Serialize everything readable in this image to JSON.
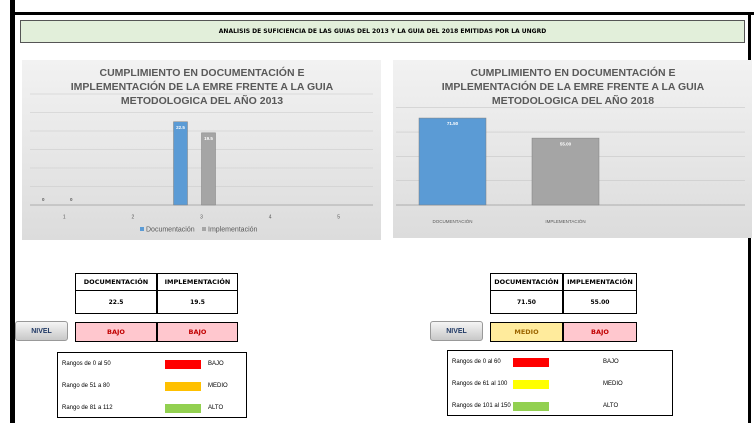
{
  "header": {
    "title": "ANALISIS DE SUFICIENCIA DE LAS GUIAS DEL 2013 Y LA GUIA  DEL 2018 EMITIDAS POR LA UNGRD"
  },
  "chart_data": [
    {
      "type": "bar",
      "title": "CUMPLIMIENTO EN DOCUMENTACIÓN E IMPLEMENTACIÓN DE LA EMRE FRENTE A LA GUIA METODOLOGICA DEL AÑO 2013",
      "categories": [
        "1",
        "2",
        "3",
        "4",
        "5"
      ],
      "series": [
        {
          "name": "Documentación",
          "color": "#5b9bd5",
          "values": [
            0,
            null,
            22.5,
            null,
            null
          ]
        },
        {
          "name": "Implementación",
          "color": "#a5a5a5",
          "values": [
            0,
            null,
            19.5,
            null,
            null
          ]
        }
      ],
      "ylim": [
        0,
        30
      ],
      "yticks": [
        0,
        5,
        10,
        15,
        20,
        25,
        30
      ],
      "grid": true,
      "legend": "bottom"
    },
    {
      "type": "bar",
      "title": "CUMPLIMIENTO EN DOCUMENTACIÓN E IMPLEMENTACIÓN DE LA EMRE FRENTE A LA GUIA METODOLOGICA DEL AÑO 2018",
      "categories": [
        "DOCUMENTACIÓN",
        "IMPLEMENTACIÓN"
      ],
      "values": [
        71.5,
        55.0
      ],
      "value_labels": [
        "71.50",
        "55.00"
      ],
      "colors": [
        "#5b9bd5",
        "#a5a5a5"
      ],
      "ylim": [
        0,
        80
      ],
      "yticks": [
        0,
        20,
        40,
        60,
        80
      ],
      "grid": true
    }
  ],
  "panels": [
    {
      "table": {
        "headers": [
          "DOCUMENTACIÓN",
          "IMPLEMENTACIÓN"
        ],
        "values": [
          "22.5",
          "19.5"
        ]
      },
      "nivel": "NIVEL",
      "levels": [
        {
          "text": "BAJO",
          "fill": "#ffc7ce",
          "color": "#c00000"
        },
        {
          "text": "BAJO",
          "fill": "#ffc7ce",
          "color": "#c00000"
        }
      ],
      "ranges": [
        {
          "label": "Rangos de 0 al 50",
          "color": "#ff0000",
          "level": "BAJO"
        },
        {
          "label": "Rango de 51 a 80",
          "color": "#ffc000",
          "level": "MEDIO"
        },
        {
          "label": "Rango de 81 a 112",
          "color": "#92d050",
          "level": "ALTO"
        }
      ]
    },
    {
      "table": {
        "headers": [
          "DOCUMENTACIÓN",
          "IMPLEMENTACIÓN"
        ],
        "values": [
          "71.50",
          "55.00"
        ]
      },
      "nivel": "NIVEL",
      "levels": [
        {
          "text": "MEDIO",
          "fill": "#ffeb9c",
          "color": "#9c6500"
        },
        {
          "text": "BAJO",
          "fill": "#ffc7ce",
          "color": "#c00000"
        }
      ],
      "ranges": [
        {
          "label": "Rangos de 0 al 60",
          "color": "#ff0000",
          "level": "BAJO"
        },
        {
          "label": "Rangos de 61 al 100",
          "color": "#ffff00",
          "level": "MEDIO"
        },
        {
          "label": "Rangos de 101 al 150",
          "color": "#92d050",
          "level": "ALTO"
        }
      ]
    }
  ]
}
